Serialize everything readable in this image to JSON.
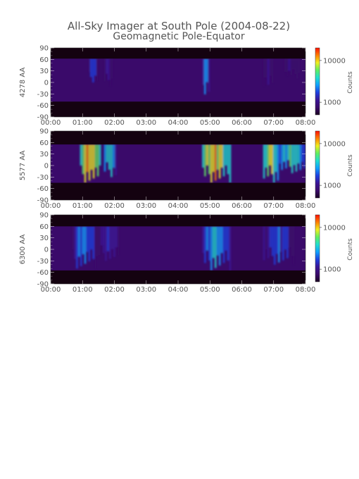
{
  "title": {
    "line1": "All-Sky Imager at South Pole (2004-08-22)",
    "line2": "Geomagnetic Pole-Equator"
  },
  "colors": {
    "text": "#555555",
    "background": "#ffffff",
    "night_mask": "#140210",
    "diffuse_glow": "#4a1a8e",
    "colormap": [
      "#1a0022",
      "#3a0a6a",
      "#3a1496",
      "#1e40e0",
      "#10a0ff",
      "#20e0d0",
      "#60f060",
      "#f0f020",
      "#ff8000",
      "#ff1000"
    ]
  },
  "chart_data": [
    {
      "type": "heatmap",
      "channel": "4278 AA",
      "ylabel": "4278 AA",
      "xlim": [
        "00:00",
        "08:00"
      ],
      "xticks": [
        "00:00",
        "01:00",
        "02:00",
        "03:00",
        "04:00",
        "05:00",
        "06:00",
        "07:00",
        "08:00"
      ],
      "ylim": [
        -90,
        90
      ],
      "yticks": [
        "90",
        "60",
        "30",
        "0",
        "-30",
        "-60",
        "-90"
      ],
      "colorbar": {
        "label": "Counts",
        "scale": "log",
        "ticks": [
          "10000",
          "1000"
        ],
        "range": [
          500,
          20000
        ]
      },
      "data_latitude_range": [
        -50,
        62
      ],
      "background_counts": 800,
      "auroral_events": [
        {
          "t_start": "01:10",
          "t_end": "01:30",
          "lat_min": 0,
          "lat_max": 62,
          "peak_counts": 2500
        },
        {
          "t_start": "01:40",
          "t_end": "01:58",
          "lat_min": -10,
          "lat_max": 62,
          "peak_counts": 1500
        },
        {
          "t_start": "04:45",
          "t_end": "05:00",
          "lat_min": -50,
          "lat_max": 62,
          "peak_counts": 3500
        },
        {
          "t_start": "06:40",
          "t_end": "07:00",
          "lat_min": -20,
          "lat_max": 62,
          "peak_counts": 1500
        },
        {
          "t_start": "07:20",
          "t_end": "07:50",
          "lat_min": 10,
          "lat_max": 62,
          "peak_counts": 1300
        }
      ]
    },
    {
      "type": "heatmap",
      "channel": "5577 AA",
      "ylabel": "5577 AA",
      "xlim": [
        "00:00",
        "08:00"
      ],
      "xticks": [
        "00:00",
        "01:00",
        "02:00",
        "03:00",
        "04:00",
        "05:00",
        "06:00",
        "07:00",
        "08:00"
      ],
      "ylim": [
        -90,
        90
      ],
      "yticks": [
        "90",
        "60",
        "30",
        "0",
        "-30",
        "-60",
        "-90"
      ],
      "colorbar": {
        "label": "Counts",
        "scale": "log",
        "ticks": [
          "10000",
          "1000"
        ],
        "range": [
          500,
          20000
        ]
      },
      "data_latitude_range": [
        -45,
        55
      ],
      "background_counts": 800,
      "auroral_events": [
        {
          "t_start": "00:55",
          "t_end": "01:35",
          "lat_min": -45,
          "lat_max": 55,
          "peak_counts": 15000
        },
        {
          "t_start": "01:40",
          "t_end": "02:05",
          "lat_min": -30,
          "lat_max": 55,
          "peak_counts": 5000
        },
        {
          "t_start": "04:45",
          "t_end": "05:40",
          "lat_min": -45,
          "lat_max": 55,
          "peak_counts": 12000
        },
        {
          "t_start": "06:40",
          "t_end": "07:10",
          "lat_min": -45,
          "lat_max": 55,
          "peak_counts": 9000
        },
        {
          "t_start": "07:10",
          "t_end": "08:00",
          "lat_min": -20,
          "lat_max": 55,
          "peak_counts": 6000
        }
      ]
    },
    {
      "type": "heatmap",
      "channel": "6300 AA",
      "ylabel": "6300 AA",
      "xlim": [
        "00:00",
        "08:00"
      ],
      "xticks": [
        "00:00",
        "01:00",
        "02:00",
        "03:00",
        "04:00",
        "05:00",
        "06:00",
        "07:00",
        "08:00"
      ],
      "ylim": [
        -90,
        90
      ],
      "yticks": [
        "90",
        "60",
        "30",
        "0",
        "-30",
        "-60",
        "-90"
      ],
      "colorbar": {
        "label": "Counts",
        "scale": "log",
        "ticks": [
          "10000",
          "1000"
        ],
        "range": [
          500,
          20000
        ]
      },
      "data_latitude_range": [
        -55,
        60
      ],
      "background_counts": 650,
      "auroral_events": [
        {
          "t_start": "00:40",
          "t_end": "01:30",
          "lat_min": -50,
          "lat_max": 60,
          "peak_counts": 3000
        },
        {
          "t_start": "01:30",
          "t_end": "02:10",
          "lat_min": -30,
          "lat_max": 60,
          "peak_counts": 2000
        },
        {
          "t_start": "04:45",
          "t_end": "05:40",
          "lat_min": -55,
          "lat_max": 60,
          "peak_counts": 4000
        },
        {
          "t_start": "06:40",
          "t_end": "07:40",
          "lat_min": -40,
          "lat_max": 60,
          "peak_counts": 2500
        }
      ]
    }
  ]
}
